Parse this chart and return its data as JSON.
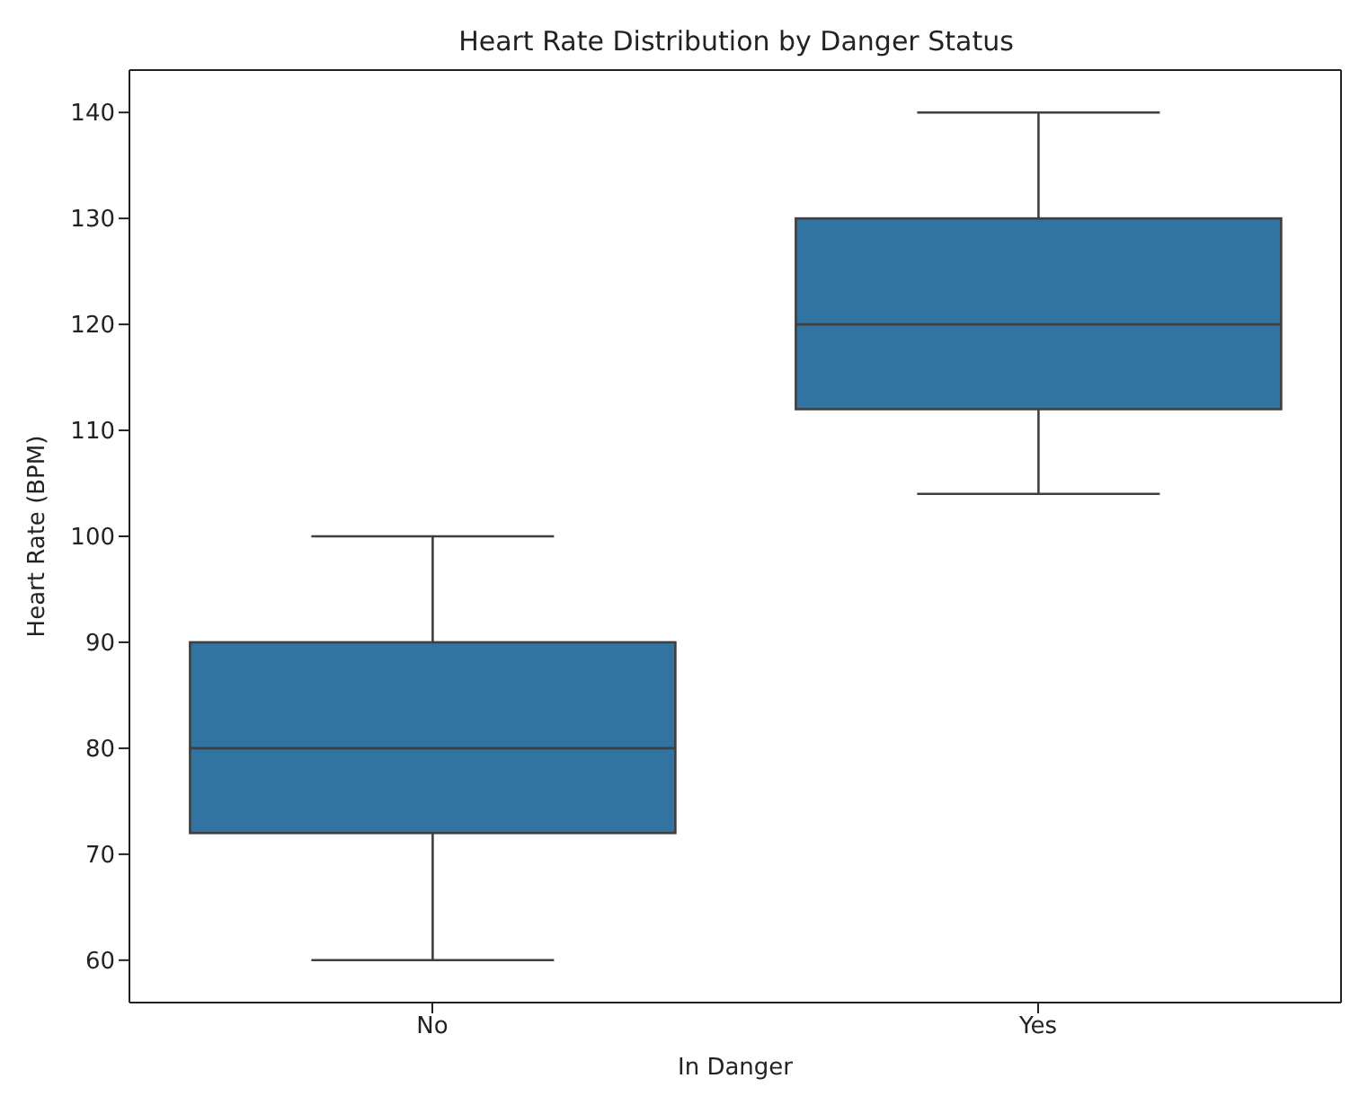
{
  "chart_data": {
    "type": "box",
    "title": "Heart Rate Distribution by Danger Status",
    "xlabel": "In Danger",
    "ylabel": "Heart Rate (BPM)",
    "categories": [
      "No",
      "Yes"
    ],
    "color": "#3274a1",
    "boxes": [
      {
        "low": 60,
        "q1": 72,
        "median": 80,
        "q3": 90,
        "high": 100
      },
      {
        "low": 104,
        "q1": 112,
        "median": 120,
        "q3": 130,
        "high": 140
      }
    ],
    "ylim": [
      56,
      144
    ],
    "yticks": [
      60,
      70,
      80,
      90,
      100,
      110,
      120,
      130,
      140
    ],
    "grid": false
  }
}
